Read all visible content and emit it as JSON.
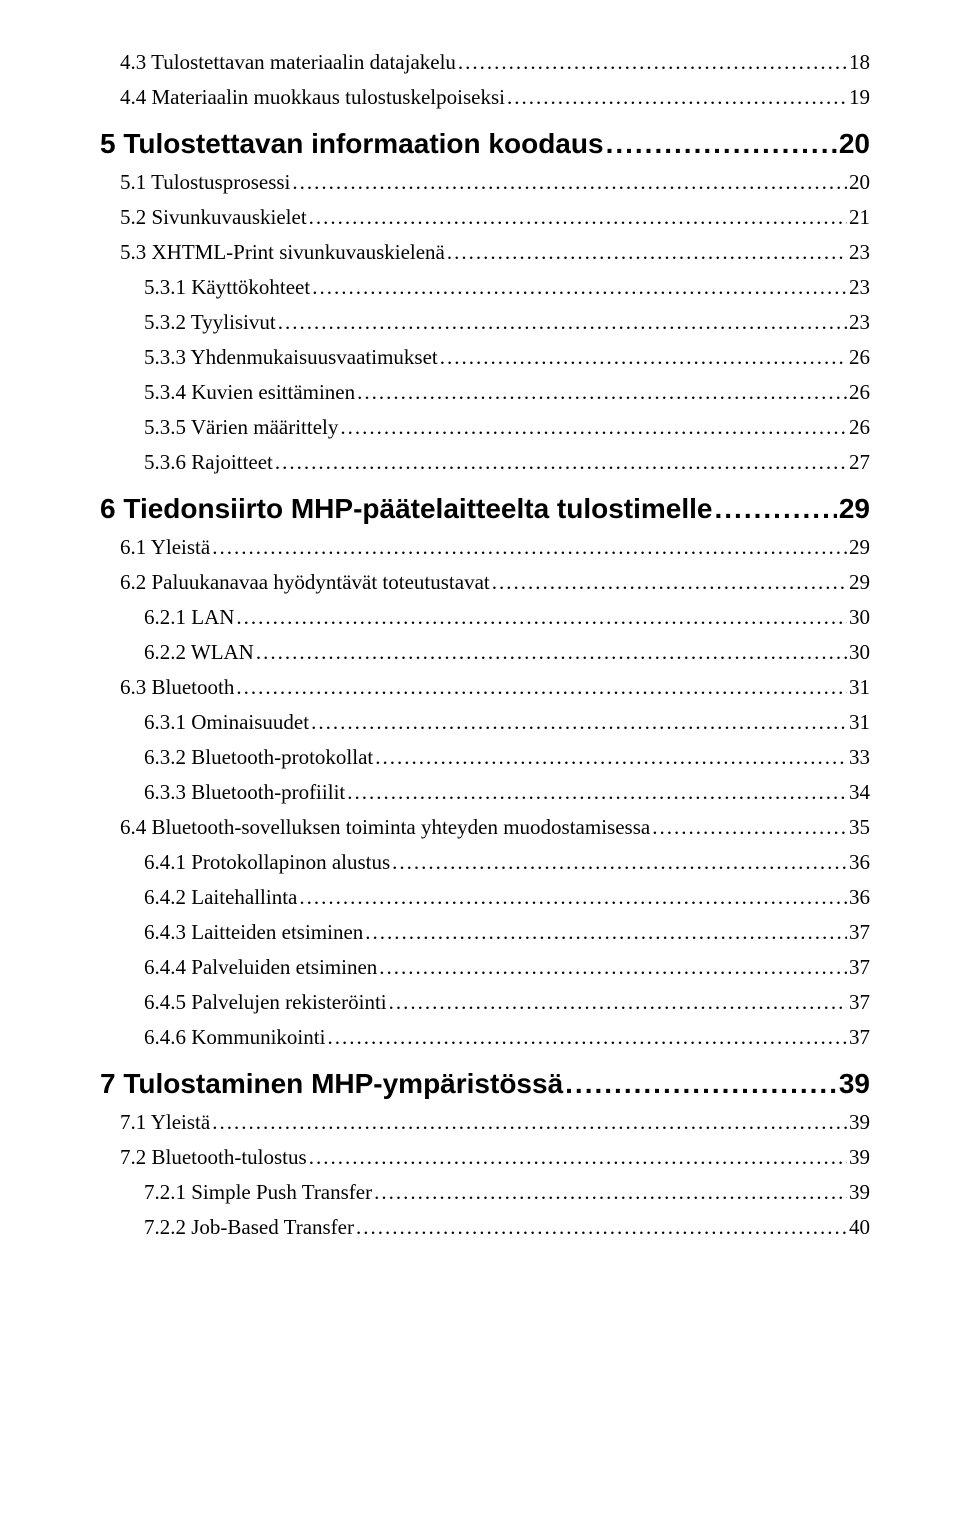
{
  "toc": [
    {
      "level": 2,
      "label": "4.3 Tulostettavan materiaalin datajakelu",
      "page": "18"
    },
    {
      "level": 2,
      "label": "4.4 Materiaalin muokkaus tulostuskelpoiseksi",
      "page": "19"
    },
    {
      "level": 1,
      "label": "5 Tulostettavan informaation koodaus",
      "page": "20"
    },
    {
      "level": 2,
      "label": "5.1 Tulostusprosessi",
      "page": "20"
    },
    {
      "level": 2,
      "label": "5.2 Sivunkuvauskielet",
      "page": "21"
    },
    {
      "level": 2,
      "label": "5.3 XHTML-Print sivunkuvauskielenä",
      "page": "23"
    },
    {
      "level": 3,
      "label": "5.3.1 Käyttökohteet",
      "page": "23"
    },
    {
      "level": 3,
      "label": "5.3.2 Tyylisivut",
      "page": "23"
    },
    {
      "level": 3,
      "label": "5.3.3 Yhdenmukaisuusvaatimukset",
      "page": "26"
    },
    {
      "level": 3,
      "label": "5.3.4 Kuvien esittäminen",
      "page": "26"
    },
    {
      "level": 3,
      "label": "5.3.5 Värien määrittely",
      "page": "26"
    },
    {
      "level": 3,
      "label": "5.3.6 Rajoitteet",
      "page": "27"
    },
    {
      "level": 1,
      "label": "6 Tiedonsiirto MHP-päätelaitteelta tulostimelle",
      "page": "29"
    },
    {
      "level": 2,
      "label": "6.1 Yleistä",
      "page": "29"
    },
    {
      "level": 2,
      "label": "6.2 Paluukanavaa hyödyntävät toteutustavat",
      "page": "29"
    },
    {
      "level": 3,
      "label": "6.2.1 LAN",
      "page": "30"
    },
    {
      "level": 3,
      "label": "6.2.2 WLAN",
      "page": "30"
    },
    {
      "level": 2,
      "label": "6.3 Bluetooth",
      "page": "31"
    },
    {
      "level": 3,
      "label": "6.3.1 Ominaisuudet",
      "page": "31"
    },
    {
      "level": 3,
      "label": "6.3.2 Bluetooth-protokollat",
      "page": "33"
    },
    {
      "level": 3,
      "label": "6.3.3 Bluetooth-profiilit",
      "page": "34"
    },
    {
      "level": 2,
      "label": "6.4 Bluetooth-sovelluksen toiminta yhteyden muodostamisessa",
      "page": "35"
    },
    {
      "level": 3,
      "label": "6.4.1 Protokollapinon alustus",
      "page": "36"
    },
    {
      "level": 3,
      "label": "6.4.2 Laitehallinta",
      "page": "36"
    },
    {
      "level": 3,
      "label": "6.4.3 Laitteiden etsiminen",
      "page": "37"
    },
    {
      "level": 3,
      "label": "6.4.4 Palveluiden etsiminen",
      "page": "37"
    },
    {
      "level": 3,
      "label": "6.4.5 Palvelujen rekisteröinti",
      "page": "37"
    },
    {
      "level": 3,
      "label": "6.4.6 Kommunikointi",
      "page": "37"
    },
    {
      "level": 1,
      "label": "7 Tulostaminen MHP-ympäristössä",
      "page": "39"
    },
    {
      "level": 2,
      "label": "7.1 Yleistä",
      "page": "39"
    },
    {
      "level": 2,
      "label": "7.2 Bluetooth-tulostus",
      "page": "39"
    },
    {
      "level": 3,
      "label": "7.2.1 Simple Push Transfer",
      "page": "39"
    },
    {
      "level": 3,
      "label": "7.2.2 Job-Based Transfer",
      "page": "40"
    }
  ]
}
